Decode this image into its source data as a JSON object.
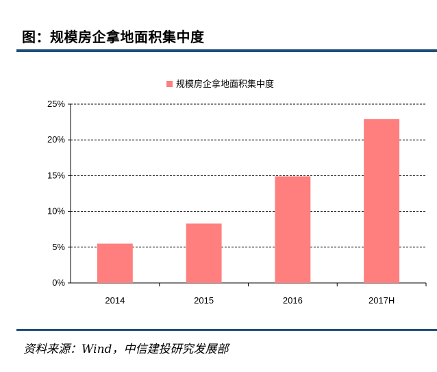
{
  "header": {
    "title": "图：规模房企拿地面积集中度"
  },
  "footer": {
    "source": "资料来源：Wind，中信建投研究发展部"
  },
  "colors": {
    "bar": "#ff7f7f",
    "rule": "#1f4e79",
    "grid": "#000000"
  },
  "chart_data": {
    "type": "bar",
    "title": "",
    "xlabel": "",
    "ylabel": "",
    "categories": [
      "2014",
      "2015",
      "2016",
      "2017H"
    ],
    "series": [
      {
        "name": "规模房企拿地面积集中度",
        "values": [
          0.055,
          0.083,
          0.149,
          0.229
        ]
      }
    ],
    "ylim": [
      0,
      0.25
    ],
    "yticks": [
      0,
      0.05,
      0.1,
      0.15,
      0.2,
      0.25
    ],
    "ytick_labels": [
      "0%",
      "5%",
      "10%",
      "15%",
      "20%",
      "25%"
    ],
    "grid": "dashed horizontal",
    "legend_position": "top-center"
  }
}
